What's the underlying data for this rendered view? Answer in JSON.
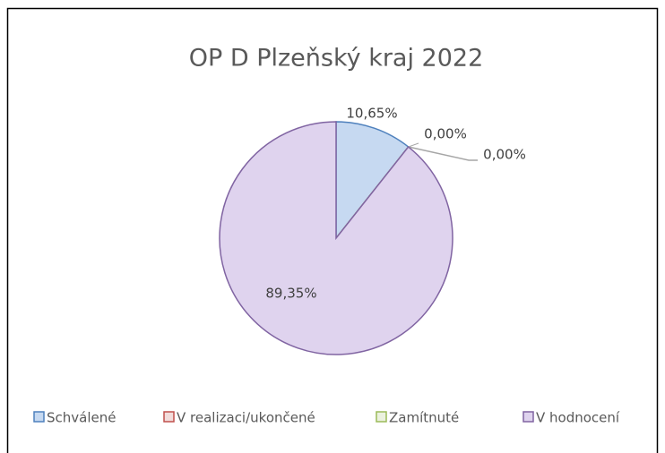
{
  "chart_data": {
    "type": "pie",
    "title": "OP D Plzeňský kraj 2022",
    "categories": [
      "Schválené",
      "V realizaci/ukončené",
      "Zamítnuté",
      "V hodnocení"
    ],
    "values": [
      10.65,
      0,
      0,
      89.35
    ],
    "value_labels": [
      "10,65%",
      "0,00%",
      "0,00%",
      "89,35%"
    ],
    "colors": [
      "#c6d9f1",
      "#f2dcdb",
      "#ebf1de",
      "#dfd3ee"
    ],
    "edge_colors": [
      "#4f81bd",
      "#c0504d",
      "#9bbb59",
      "#8064a2"
    ],
    "legend": "bottom"
  }
}
